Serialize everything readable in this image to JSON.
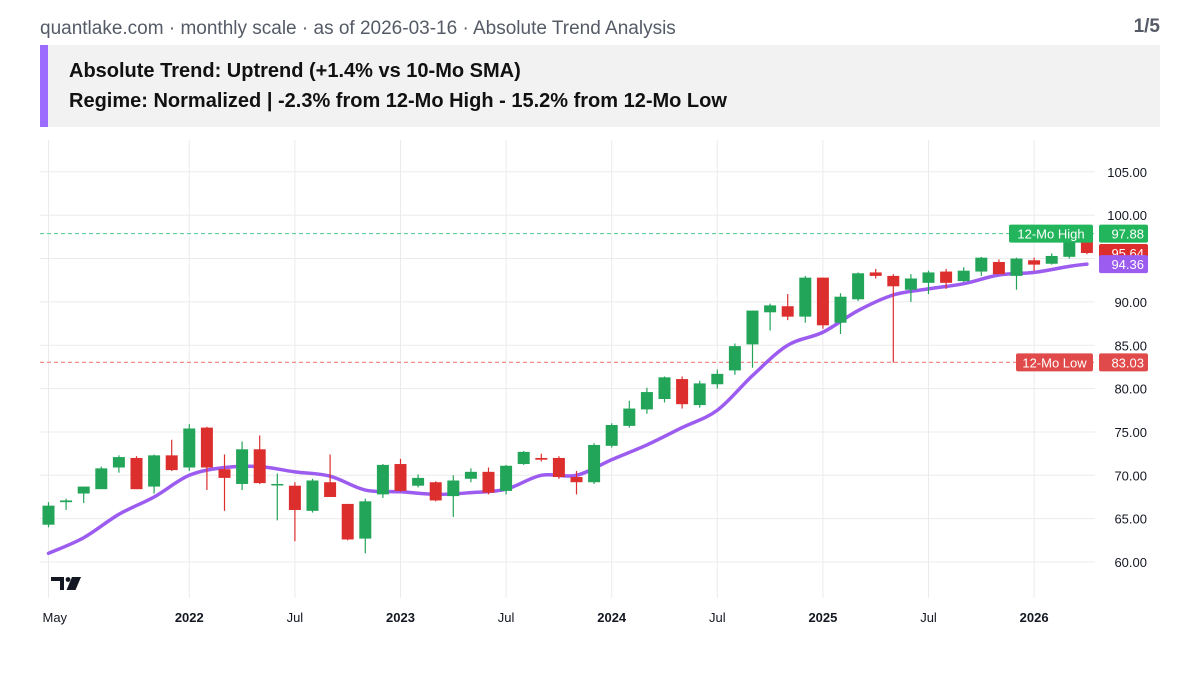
{
  "header": {
    "source_line": "quantlake.com · monthly scale · as of 2026-03-16 · Absolute Trend Analysis",
    "page_indicator": "1/5"
  },
  "banner": {
    "line1": "Absolute Trend: Uptrend (+1.4% vs 10-Mo SMA)",
    "line2": "Regime: Normalized | -2.3% from 12-Mo High - 15.2% from 12-Mo Low",
    "accent_color": "#9c6cff"
  },
  "colors": {
    "up": "#22a559",
    "down": "#dd2e2e",
    "sma": "#9c5cf0",
    "high_line": "#5fd0a0",
    "low_line": "#f08080",
    "high_badge": "#22b55b",
    "low_badge": "#e04a4a",
    "last_badge": "#dd2e2e",
    "sma_badge": "#9c5cf0",
    "grid": "#ebebeb"
  },
  "chart_data": {
    "type": "candlestick",
    "interval": "monthly",
    "y_ticks": [
      "60.00",
      "65.00",
      "70.00",
      "75.00",
      "80.00",
      "85.00",
      "90.00",
      "95.00",
      "100.00",
      "105.00"
    ],
    "x_labels": [
      {
        "label": "May",
        "month": "2021-05",
        "bold": false
      },
      {
        "label": "2022",
        "month": "2022-01",
        "bold": true
      },
      {
        "label": "Jul",
        "month": "2022-07",
        "bold": false
      },
      {
        "label": "2023",
        "month": "2023-01",
        "bold": true
      },
      {
        "label": "Jul",
        "month": "2023-07",
        "bold": false
      },
      {
        "label": "2024",
        "month": "2024-01",
        "bold": true
      },
      {
        "label": "Jul",
        "month": "2024-07",
        "bold": false
      },
      {
        "label": "2025",
        "month": "2025-01",
        "bold": true
      },
      {
        "label": "Jul",
        "month": "2025-07",
        "bold": false
      },
      {
        "label": "2026",
        "month": "2026-01",
        "bold": true
      }
    ],
    "candles": [
      {
        "date": "2021-05",
        "o": 64.3,
        "h": 66.9,
        "l": 64.0,
        "c": 66.5
      },
      {
        "date": "2021-06",
        "o": 66.9,
        "h": 67.3,
        "l": 66.0,
        "c": 67.1
      },
      {
        "date": "2021-07",
        "o": 67.9,
        "h": 68.7,
        "l": 66.8,
        "c": 68.7
      },
      {
        "date": "2021-08",
        "o": 68.4,
        "h": 71.0,
        "l": 68.4,
        "c": 70.8
      },
      {
        "date": "2021-09",
        "o": 70.9,
        "h": 72.3,
        "l": 70.3,
        "c": 72.1
      },
      {
        "date": "2021-10",
        "o": 72.0,
        "h": 72.2,
        "l": 68.4,
        "c": 68.4
      },
      {
        "date": "2021-11",
        "o": 68.7,
        "h": 72.4,
        "l": 67.9,
        "c": 72.3
      },
      {
        "date": "2021-12",
        "o": 72.3,
        "h": 74.1,
        "l": 70.5,
        "c": 70.6
      },
      {
        "date": "2022-01",
        "o": 70.9,
        "h": 75.9,
        "l": 70.5,
        "c": 75.4
      },
      {
        "date": "2022-02",
        "o": 75.5,
        "h": 75.6,
        "l": 68.3,
        "c": 70.9
      },
      {
        "date": "2022-03",
        "o": 70.7,
        "h": 72.4,
        "l": 65.9,
        "c": 69.7
      },
      {
        "date": "2022-04",
        "o": 69.0,
        "h": 73.9,
        "l": 68.3,
        "c": 73.0
      },
      {
        "date": "2022-05",
        "o": 73.0,
        "h": 74.6,
        "l": 69.0,
        "c": 69.1
      },
      {
        "date": "2022-06",
        "o": 69.0,
        "h": 70.2,
        "l": 64.8,
        "c": 69.0
      },
      {
        "date": "2022-07",
        "o": 68.8,
        "h": 69.2,
        "l": 62.4,
        "c": 66.0
      },
      {
        "date": "2022-08",
        "o": 65.9,
        "h": 69.6,
        "l": 65.7,
        "c": 69.4
      },
      {
        "date": "2022-09",
        "o": 69.2,
        "h": 72.4,
        "l": 67.5,
        "c": 67.5
      },
      {
        "date": "2022-10",
        "o": 66.7,
        "h": 66.7,
        "l": 62.5,
        "c": 62.6
      },
      {
        "date": "2022-11",
        "o": 62.7,
        "h": 67.3,
        "l": 61.0,
        "c": 67.0
      },
      {
        "date": "2022-12",
        "o": 67.8,
        "h": 71.3,
        "l": 67.4,
        "c": 71.2
      },
      {
        "date": "2023-01",
        "o": 71.3,
        "h": 71.9,
        "l": 68.1,
        "c": 68.2
      },
      {
        "date": "2023-02",
        "o": 68.8,
        "h": 70.1,
        "l": 68.6,
        "c": 69.7
      },
      {
        "date": "2023-03",
        "o": 69.2,
        "h": 69.3,
        "l": 67.0,
        "c": 67.1
      },
      {
        "date": "2023-04",
        "o": 67.6,
        "h": 70.0,
        "l": 65.2,
        "c": 69.4
      },
      {
        "date": "2023-05",
        "o": 69.6,
        "h": 70.8,
        "l": 69.2,
        "c": 70.4
      },
      {
        "date": "2023-06",
        "o": 70.4,
        "h": 70.9,
        "l": 67.8,
        "c": 68.0
      },
      {
        "date": "2023-07",
        "o": 68.2,
        "h": 71.2,
        "l": 67.8,
        "c": 71.1
      },
      {
        "date": "2023-08",
        "o": 71.3,
        "h": 72.8,
        "l": 71.2,
        "c": 72.7
      },
      {
        "date": "2023-09",
        "o": 72.0,
        "h": 72.5,
        "l": 71.6,
        "c": 71.8
      },
      {
        "date": "2023-10",
        "o": 72.0,
        "h": 72.2,
        "l": 69.6,
        "c": 69.8
      },
      {
        "date": "2023-11",
        "o": 69.8,
        "h": 70.5,
        "l": 67.8,
        "c": 69.2
      },
      {
        "date": "2023-12",
        "o": 69.2,
        "h": 73.7,
        "l": 69.0,
        "c": 73.5
      },
      {
        "date": "2024-01",
        "o": 73.4,
        "h": 76.0,
        "l": 73.2,
        "c": 75.8
      },
      {
        "date": "2024-02",
        "o": 75.7,
        "h": 78.6,
        "l": 75.5,
        "c": 77.7
      },
      {
        "date": "2024-03",
        "o": 77.6,
        "h": 80.1,
        "l": 77.1,
        "c": 79.6
      },
      {
        "date": "2024-04",
        "o": 78.8,
        "h": 81.4,
        "l": 78.4,
        "c": 81.3
      },
      {
        "date": "2024-05",
        "o": 81.1,
        "h": 81.4,
        "l": 77.7,
        "c": 78.2
      },
      {
        "date": "2024-06",
        "o": 78.1,
        "h": 80.9,
        "l": 77.8,
        "c": 80.6
      },
      {
        "date": "2024-07",
        "o": 80.5,
        "h": 82.2,
        "l": 80.0,
        "c": 81.7
      },
      {
        "date": "2024-08",
        "o": 82.1,
        "h": 85.2,
        "l": 81.6,
        "c": 84.9
      },
      {
        "date": "2024-09",
        "o": 85.1,
        "h": 89.0,
        "l": 82.4,
        "c": 89.0
      },
      {
        "date": "2024-10",
        "o": 88.8,
        "h": 89.8,
        "l": 86.7,
        "c": 89.6
      },
      {
        "date": "2024-11",
        "o": 89.5,
        "h": 90.9,
        "l": 87.9,
        "c": 88.3
      },
      {
        "date": "2024-12",
        "o": 88.3,
        "h": 93.0,
        "l": 87.6,
        "c": 92.8
      },
      {
        "date": "2025-01",
        "o": 92.8,
        "h": 92.8,
        "l": 86.9,
        "c": 87.3
      },
      {
        "date": "2025-02",
        "o": 87.6,
        "h": 91.0,
        "l": 86.3,
        "c": 90.6
      },
      {
        "date": "2025-03",
        "o": 90.3,
        "h": 93.4,
        "l": 90.1,
        "c": 93.3
      },
      {
        "date": "2025-04",
        "o": 93.4,
        "h": 93.8,
        "l": 92.7,
        "c": 93.0
      },
      {
        "date": "2025-05",
        "o": 93.0,
        "h": 93.2,
        "l": 83.0,
        "c": 91.8
      },
      {
        "date": "2025-06",
        "o": 91.4,
        "h": 93.2,
        "l": 90.0,
        "c": 92.7
      },
      {
        "date": "2025-07",
        "o": 92.2,
        "h": 93.6,
        "l": 90.9,
        "c": 93.4
      },
      {
        "date": "2025-08",
        "o": 93.5,
        "h": 93.8,
        "l": 91.5,
        "c": 92.2
      },
      {
        "date": "2025-09",
        "o": 92.4,
        "h": 94.0,
        "l": 92.3,
        "c": 93.6
      },
      {
        "date": "2025-10",
        "o": 93.5,
        "h": 95.2,
        "l": 93.0,
        "c": 95.1
      },
      {
        "date": "2025-11",
        "o": 94.6,
        "h": 94.9,
        "l": 93.2,
        "c": 93.2
      },
      {
        "date": "2025-12",
        "o": 93.0,
        "h": 95.1,
        "l": 91.4,
        "c": 95.0
      },
      {
        "date": "2026-01",
        "o": 94.8,
        "h": 95.1,
        "l": 93.6,
        "c": 94.3
      },
      {
        "date": "2026-02",
        "o": 94.4,
        "h": 95.6,
        "l": 94.3,
        "c": 95.3
      },
      {
        "date": "2026-03",
        "o": 95.2,
        "h": 97.9,
        "l": 95.0,
        "c": 97.5
      },
      {
        "date": "2026-04",
        "o": 97.1,
        "h": 97.6,
        "l": 95.5,
        "c": 95.64
      }
    ],
    "sma_10": [
      {
        "date": "2021-05",
        "v": 61.0
      },
      {
        "date": "2021-07",
        "v": 62.8
      },
      {
        "date": "2021-09",
        "v": 65.5
      },
      {
        "date": "2021-11",
        "v": 67.5
      },
      {
        "date": "2022-01",
        "v": 70.0
      },
      {
        "date": "2022-03",
        "v": 70.9
      },
      {
        "date": "2022-05",
        "v": 71.0
      },
      {
        "date": "2022-07",
        "v": 70.4
      },
      {
        "date": "2022-09",
        "v": 69.9
      },
      {
        "date": "2022-11",
        "v": 68.3
      },
      {
        "date": "2023-01",
        "v": 68.1
      },
      {
        "date": "2023-03",
        "v": 67.8
      },
      {
        "date": "2023-05",
        "v": 68.0
      },
      {
        "date": "2023-07",
        "v": 68.4
      },
      {
        "date": "2023-09",
        "v": 70.0
      },
      {
        "date": "2023-11",
        "v": 70.0
      },
      {
        "date": "2024-01",
        "v": 71.8
      },
      {
        "date": "2024-03",
        "v": 73.5
      },
      {
        "date": "2024-05",
        "v": 75.5
      },
      {
        "date": "2024-07",
        "v": 77.5
      },
      {
        "date": "2024-09",
        "v": 81.5
      },
      {
        "date": "2024-11",
        "v": 85.0
      },
      {
        "date": "2025-01",
        "v": 86.5
      },
      {
        "date": "2025-03",
        "v": 89.0
      },
      {
        "date": "2025-05",
        "v": 90.8
      },
      {
        "date": "2025-07",
        "v": 91.5
      },
      {
        "date": "2025-09",
        "v": 92.1
      },
      {
        "date": "2025-11",
        "v": 93.1
      },
      {
        "date": "2026-01",
        "v": 93.4
      },
      {
        "date": "2026-03",
        "v": 94.1
      },
      {
        "date": "2026-04",
        "v": 94.36
      }
    ],
    "reference_lines": [
      {
        "label": "12-Mo High",
        "value": 97.88,
        "value_text": "97.88",
        "style": "dashed",
        "color": "#5fd0a0",
        "badge_color": "#22b55b"
      },
      {
        "label": "12-Mo Low",
        "value": 83.03,
        "value_text": "83.03",
        "style": "dashed",
        "color": "#f08080",
        "badge_color": "#e04a4a"
      }
    ],
    "price_badges": [
      {
        "name": "last-price",
        "value": 95.64,
        "text": "95.64",
        "color": "#dd2e2e"
      },
      {
        "name": "sma-value",
        "value": 94.36,
        "text": "94.36",
        "color": "#9c5cf0"
      }
    ],
    "ylim": [
      56.5,
      108
    ],
    "grid": true
  },
  "logo_icon": "tradingview-logo-icon"
}
